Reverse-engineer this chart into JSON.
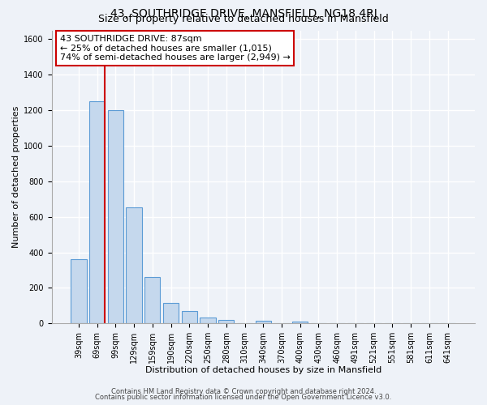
{
  "title": "43, SOUTHRIDGE DRIVE, MANSFIELD, NG18 4RJ",
  "subtitle": "Size of property relative to detached houses in Mansfield",
  "xlabel": "Distribution of detached houses by size in Mansfield",
  "ylabel": "Number of detached properties",
  "bar_labels": [
    "39sqm",
    "69sqm",
    "99sqm",
    "129sqm",
    "159sqm",
    "190sqm",
    "220sqm",
    "250sqm",
    "280sqm",
    "310sqm",
    "340sqm",
    "370sqm",
    "400sqm",
    "430sqm",
    "460sqm",
    "491sqm",
    "521sqm",
    "551sqm",
    "581sqm",
    "611sqm",
    "641sqm"
  ],
  "bar_values": [
    360,
    1250,
    1200,
    655,
    260,
    115,
    70,
    35,
    20,
    0,
    15,
    0,
    10,
    0,
    0,
    0,
    0,
    0,
    0,
    0,
    0
  ],
  "bar_color": "#c5d8ed",
  "bar_edge_color": "#5b9bd5",
  "bar_edge_width": 0.8,
  "vline_color": "#cc0000",
  "vline_linewidth": 1.5,
  "vline_x_index": 1,
  "ylim": [
    0,
    1650
  ],
  "yticks": [
    0,
    200,
    400,
    600,
    800,
    1000,
    1200,
    1400,
    1600
  ],
  "annotation_text": "43 SOUTHRIDGE DRIVE: 87sqm\n← 25% of detached houses are smaller (1,015)\n74% of semi-detached houses are larger (2,949) →",
  "annotation_box_color": "#ffffff",
  "annotation_box_edgecolor": "#cc0000",
  "footer1": "Contains HM Land Registry data © Crown copyright and database right 2024.",
  "footer2": "Contains public sector information licensed under the Open Government Licence v3.0.",
  "bg_color": "#eef2f8",
  "plot_bg_color": "#eef2f8",
  "grid_color": "#ffffff",
  "title_fontsize": 10,
  "subtitle_fontsize": 9,
  "axis_label_fontsize": 8,
  "tick_fontsize": 7,
  "annotation_fontsize": 8,
  "footer_fontsize": 6
}
